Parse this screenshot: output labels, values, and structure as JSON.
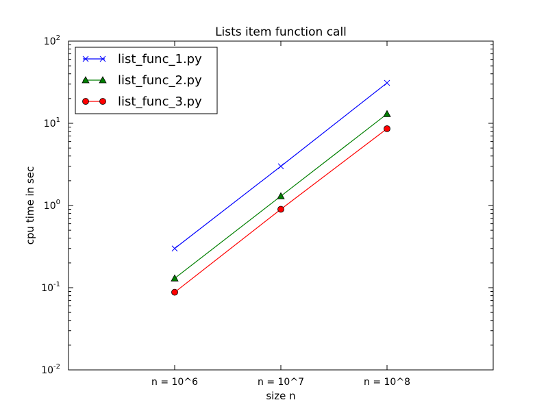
{
  "chart_data": {
    "type": "line",
    "title": "Lists item function call",
    "xlabel": "size n",
    "ylabel": "cpu time in sec",
    "categories": [
      "n = 10^6",
      "n = 10^7",
      "n = 10^8"
    ],
    "y_scale": "log",
    "ylim": [
      0.01,
      100
    ],
    "y_ticks": [
      {
        "base": "10",
        "exp": "-2"
      },
      {
        "base": "10",
        "exp": "-1"
      },
      {
        "base": "10",
        "exp": "0"
      },
      {
        "base": "10",
        "exp": "1"
      },
      {
        "base": "10",
        "exp": "2"
      }
    ],
    "grid": false,
    "legend_position": "top-left",
    "series": [
      {
        "name": "list_func_1.py",
        "values": [
          0.3,
          3.0,
          31.0
        ],
        "color": "#0000ff",
        "marker": "x"
      },
      {
        "name": "list_func_2.py",
        "values": [
          0.13,
          1.3,
          13.0
        ],
        "color": "#007f00",
        "marker": "triangle"
      },
      {
        "name": "list_func_3.py",
        "values": [
          0.088,
          0.9,
          8.6
        ],
        "color": "#ff0000",
        "marker": "circle"
      }
    ]
  }
}
